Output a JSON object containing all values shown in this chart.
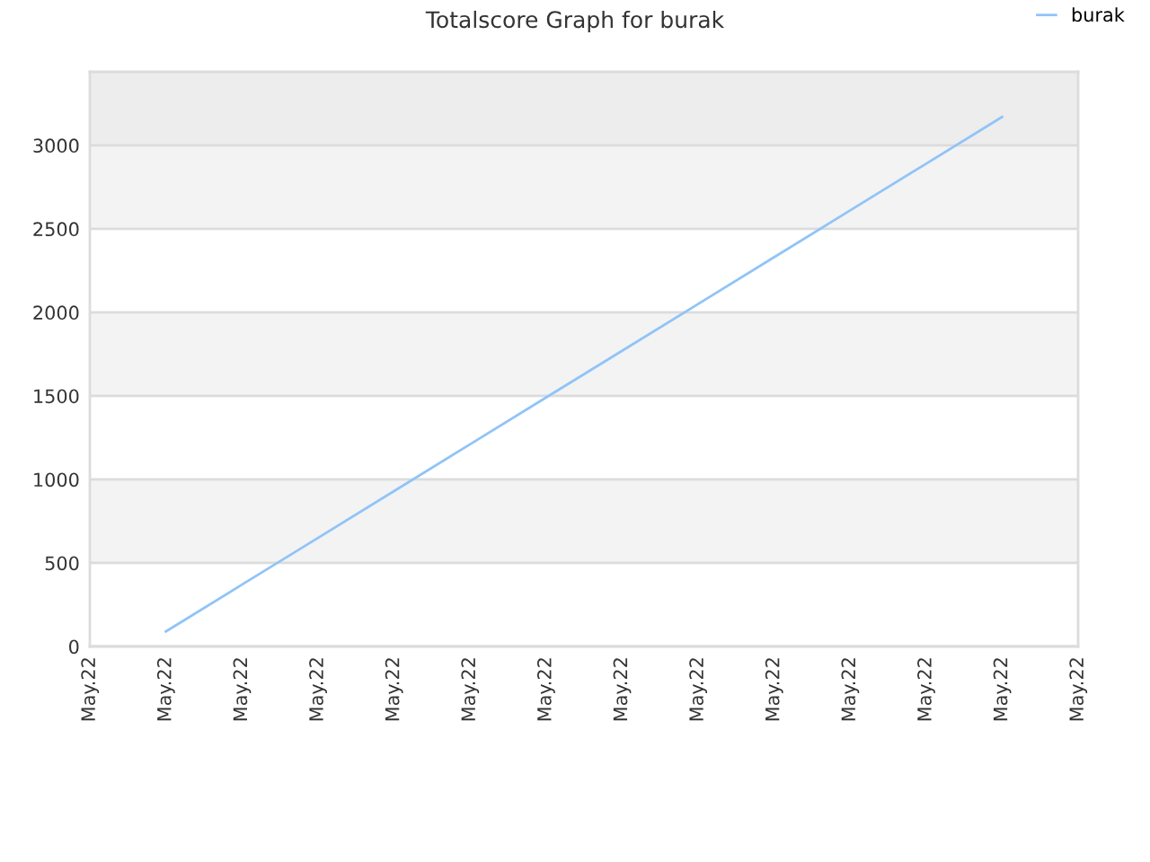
{
  "chart_data": {
    "type": "line",
    "title": "Totalscore Graph for burak",
    "categories": [
      "May.22",
      "May.22",
      "May.22",
      "May.22",
      "May.22",
      "May.22",
      "May.22",
      "May.22",
      "May.22",
      "May.22",
      "May.22",
      "May.22",
      "May.22",
      "May.22"
    ],
    "series": [
      {
        "name": "burak",
        "color": "#90c4f8",
        "values": [
          null,
          90,
          370,
          650,
          930,
          1210,
          1490,
          1770,
          2050,
          2330,
          2610,
          2890,
          3170,
          null
        ]
      }
    ],
    "ylim": [
      0,
      3440
    ],
    "yticks": [
      0,
      500,
      1000,
      1500,
      2000,
      2500,
      3000
    ],
    "bands": [
      {
        "axis": "y",
        "from": 500,
        "to": 1000,
        "color": "#f3f3f3"
      },
      {
        "axis": "y",
        "from": 1500,
        "to": 2000,
        "color": "#f3f3f3"
      },
      {
        "axis": "y",
        "from": 2500,
        "to": 3000,
        "color": "#f3f3f3"
      },
      {
        "axis": "y",
        "from": 3000,
        "to": 3440,
        "color": "#ededed"
      }
    ],
    "grid": "y",
    "legend": "top right",
    "marker": "none",
    "line_style": "solid"
  }
}
